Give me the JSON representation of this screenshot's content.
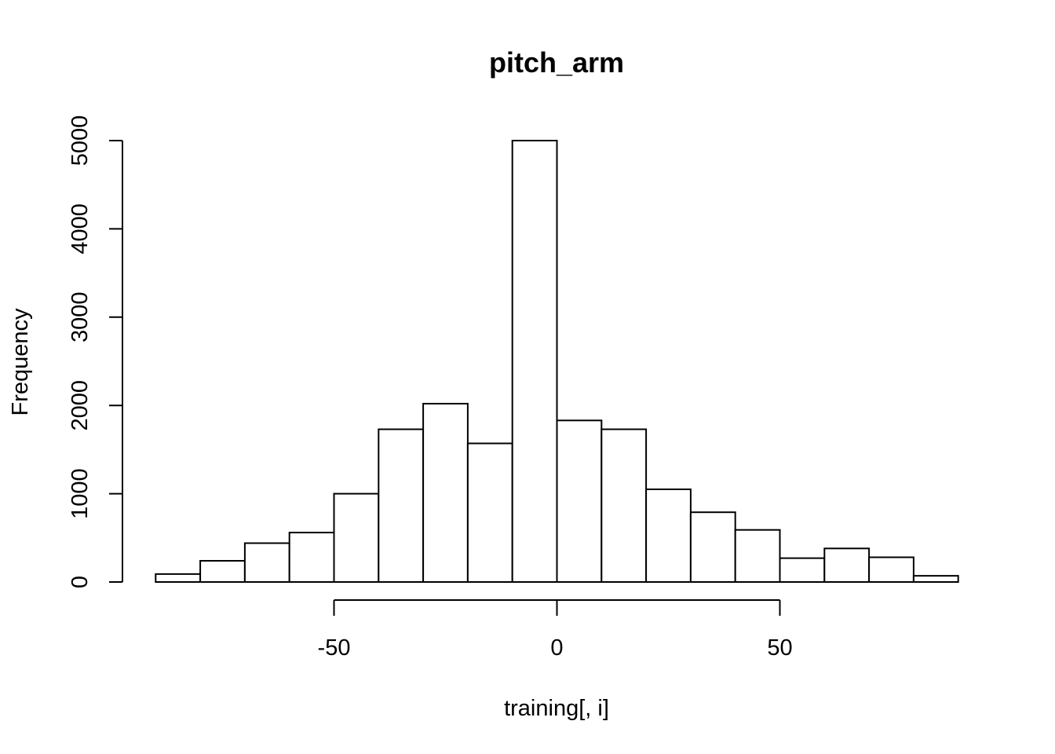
{
  "chart_data": {
    "type": "bar",
    "title": "pitch_arm",
    "xlabel": "training[, i]",
    "ylabel": "Frequency",
    "bins": [
      {
        "from": -90,
        "to": -80,
        "count": 90
      },
      {
        "from": -80,
        "to": -70,
        "count": 240
      },
      {
        "from": -70,
        "to": -60,
        "count": 440
      },
      {
        "from": -60,
        "to": -50,
        "count": 560
      },
      {
        "from": -50,
        "to": -40,
        "count": 1000
      },
      {
        "from": -40,
        "to": -30,
        "count": 1730
      },
      {
        "from": -30,
        "to": -20,
        "count": 2020
      },
      {
        "from": -20,
        "to": -10,
        "count": 1570
      },
      {
        "from": -10,
        "to": 0,
        "count": 5000
      },
      {
        "from": 0,
        "to": 10,
        "count": 1830
      },
      {
        "from": 10,
        "to": 20,
        "count": 1730
      },
      {
        "from": 20,
        "to": 30,
        "count": 1050
      },
      {
        "from": 30,
        "to": 40,
        "count": 790
      },
      {
        "from": 40,
        "to": 50,
        "count": 590
      },
      {
        "from": 50,
        "to": 60,
        "count": 270
      },
      {
        "from": 60,
        "to": 70,
        "count": 380
      },
      {
        "from": 70,
        "to": 80,
        "count": 280
      },
      {
        "from": 80,
        "to": 90,
        "count": 70
      }
    ],
    "xlim": [
      -90,
      90
    ],
    "ylim": [
      0,
      5000
    ],
    "x_ticks": [
      -50,
      0,
      50
    ],
    "x_tick_labels": [
      "-50",
      "0",
      "50"
    ],
    "y_ticks": [
      0,
      1000,
      2000,
      3000,
      4000,
      5000
    ],
    "y_tick_labels": [
      "0",
      "1000",
      "2000",
      "3000",
      "4000",
      "5000"
    ],
    "grid": false,
    "legend": "none"
  }
}
